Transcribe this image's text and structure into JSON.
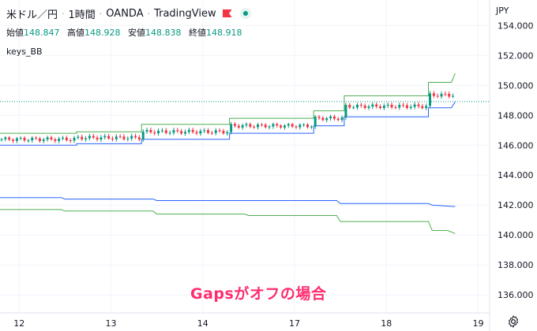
{
  "header": {
    "symbol": "米ドル／円",
    "interval": "1時間",
    "broker": "OANDA",
    "platform": "TradingView"
  },
  "ohlc": {
    "open_label": "始値",
    "open": "148.847",
    "high_label": "高値",
    "high": "148.928",
    "low_label": "安値",
    "low": "148.838",
    "close_label": "終値",
    "close": "148.918"
  },
  "indicator": "keys_BB",
  "currency": "JPY",
  "annotation": "Gapsがオフの場合",
  "colors": {
    "green_band": "#4caf50",
    "blue_band": "#2962ff",
    "up_candle": "#089981",
    "down_candle": "#f23645",
    "last_price_line": "#089981",
    "annotation": "#ff2d6f"
  },
  "icons": [
    "flag-icon",
    "status-dot-icon",
    "settings-gear-icon"
  ],
  "chart_data": {
    "type": "line",
    "ylim": [
      134.8,
      155.7
    ],
    "ylabels": [
      "154.000",
      "152.000",
      "150.000",
      "148.000",
      "146.000",
      "144.000",
      "142.000",
      "140.000",
      "138.000",
      "136.000"
    ],
    "yticks": [
      154,
      152,
      150,
      148,
      146,
      144,
      142,
      140,
      138,
      136
    ],
    "xticks": [
      {
        "label": "12",
        "t": 5
      },
      {
        "label": "13",
        "t": 29
      },
      {
        "label": "14",
        "t": 53
      },
      {
        "label": "17",
        "t": 77
      },
      {
        "label": "18",
        "t": 101
      },
      {
        "label": "19",
        "t": 125
      }
    ],
    "last_price": 148.918,
    "series": [
      {
        "points": [
          [
            0,
            146.8
          ],
          [
            20,
            146.8
          ],
          [
            20,
            146.9
          ],
          [
            37,
            146.9
          ],
          [
            37,
            147.4
          ],
          [
            60,
            147.4
          ],
          [
            60,
            147.8
          ],
          [
            82,
            147.8
          ],
          [
            82,
            148.3
          ],
          [
            90,
            148.3
          ],
          [
            90,
            149.3
          ],
          [
            112,
            149.3
          ],
          [
            112,
            150.2
          ],
          [
            118,
            150.2
          ],
          [
            119,
            150.8
          ]
        ]
      },
      {
        "points": [
          [
            0,
            146.0
          ],
          [
            20,
            146.0
          ],
          [
            20,
            146.1
          ],
          [
            37,
            146.1
          ],
          [
            37,
            146.4
          ],
          [
            60,
            146.4
          ],
          [
            60,
            146.8
          ],
          [
            82,
            146.8
          ],
          [
            82,
            147.3
          ],
          [
            90,
            147.3
          ],
          [
            90,
            147.9
          ],
          [
            112,
            147.9
          ],
          [
            112,
            148.5
          ],
          [
            118,
            148.5
          ],
          [
            119,
            148.9
          ]
        ]
      },
      {
        "points": [
          [
            0,
            142.5
          ],
          [
            16,
            142.5
          ],
          [
            17,
            142.4
          ],
          [
            40,
            142.4
          ],
          [
            41,
            142.3
          ],
          [
            88,
            142.3
          ],
          [
            89,
            142.1
          ],
          [
            112,
            142.1
          ],
          [
            113,
            142.0
          ],
          [
            119,
            141.9
          ]
        ]
      },
      {
        "points": [
          [
            0,
            141.7
          ],
          [
            16,
            141.7
          ],
          [
            17,
            141.6
          ],
          [
            40,
            141.6
          ],
          [
            41,
            141.4
          ],
          [
            64,
            141.4
          ],
          [
            65,
            141.3
          ],
          [
            88,
            141.3
          ],
          [
            89,
            140.9
          ],
          [
            112,
            140.9
          ],
          [
            113,
            140.3
          ],
          [
            117,
            140.3
          ],
          [
            119,
            140.1
          ]
        ]
      }
    ]
  }
}
